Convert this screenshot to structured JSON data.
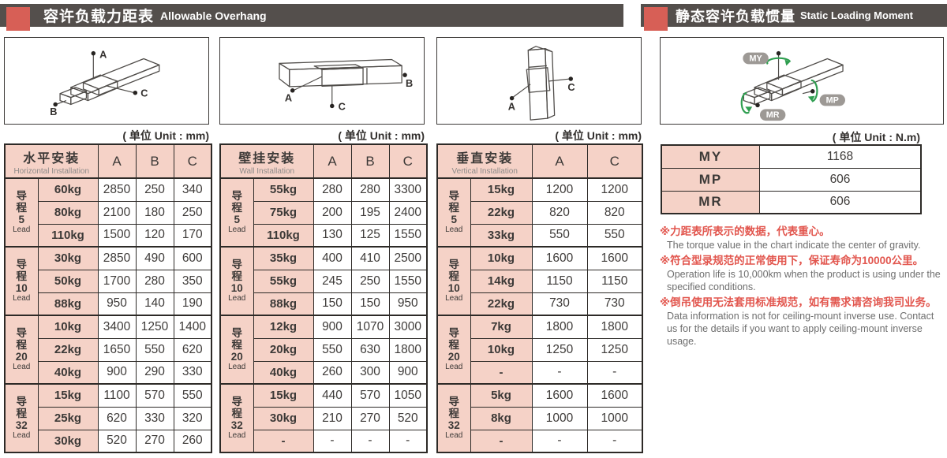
{
  "header_bars": {
    "left": {
      "title_zh": "容许负载力距表",
      "title_en": "Allowable Overhang"
    },
    "right": {
      "title_zh": "静态容许负载惯量",
      "title_en": "Static Loading Moment"
    }
  },
  "units": {
    "mm": "( 单位 Unit : mm)",
    "nm": "( 单位 Unit : N.m)"
  },
  "diagram_labels": {
    "a": "A",
    "b": "B",
    "c": "C",
    "my": "MY",
    "mp": "MP",
    "mr": "MR"
  },
  "tables": [
    {
      "title_zh": "水平安装",
      "title_en": "Horizontal Installation",
      "columns": [
        "A",
        "B",
        "C"
      ],
      "groups": [
        {
          "lead_label_zh": "导程",
          "lead_number": "5",
          "lead_label_en": "Lead",
          "rows": [
            {
              "load": "60kg",
              "values": [
                "2850",
                "250",
                "340"
              ]
            },
            {
              "load": "80kg",
              "values": [
                "2100",
                "180",
                "250"
              ]
            },
            {
              "load": "110kg",
              "values": [
                "1500",
                "120",
                "170"
              ]
            }
          ]
        },
        {
          "lead_label_zh": "导程",
          "lead_number": "10",
          "lead_label_en": "Lead",
          "rows": [
            {
              "load": "30kg",
              "values": [
                "2850",
                "490",
                "600"
              ]
            },
            {
              "load": "50kg",
              "values": [
                "1700",
                "280",
                "350"
              ]
            },
            {
              "load": "88kg",
              "values": [
                "950",
                "140",
                "190"
              ]
            }
          ]
        },
        {
          "lead_label_zh": "导程",
          "lead_number": "20",
          "lead_label_en": "Lead",
          "rows": [
            {
              "load": "10kg",
              "values": [
                "3400",
                "1250",
                "1400"
              ]
            },
            {
              "load": "22kg",
              "values": [
                "1650",
                "550",
                "620"
              ]
            },
            {
              "load": "40kg",
              "values": [
                "900",
                "290",
                "330"
              ]
            }
          ]
        },
        {
          "lead_label_zh": "导程",
          "lead_number": "32",
          "lead_label_en": "Lead",
          "rows": [
            {
              "load": "15kg",
              "values": [
                "1100",
                "570",
                "550"
              ]
            },
            {
              "load": "25kg",
              "values": [
                "620",
                "330",
                "320"
              ]
            },
            {
              "load": "30kg",
              "values": [
                "520",
                "270",
                "260"
              ]
            }
          ]
        }
      ]
    },
    {
      "title_zh": "壁挂安装",
      "title_en": "Wall Installation",
      "columns": [
        "A",
        "B",
        "C"
      ],
      "groups": [
        {
          "lead_label_zh": "导程",
          "lead_number": "5",
          "lead_label_en": "Lead",
          "rows": [
            {
              "load": "55kg",
              "values": [
                "280",
                "280",
                "3300"
              ]
            },
            {
              "load": "75kg",
              "values": [
                "200",
                "195",
                "2400"
              ]
            },
            {
              "load": "110kg",
              "values": [
                "130",
                "125",
                "1550"
              ]
            }
          ]
        },
        {
          "lead_label_zh": "导程",
          "lead_number": "10",
          "lead_label_en": "Lead",
          "rows": [
            {
              "load": "35kg",
              "values": [
                "400",
                "410",
                "2500"
              ]
            },
            {
              "load": "55kg",
              "values": [
                "245",
                "250",
                "1550"
              ]
            },
            {
              "load": "88kg",
              "values": [
                "150",
                "150",
                "950"
              ]
            }
          ]
        },
        {
          "lead_label_zh": "导程",
          "lead_number": "20",
          "lead_label_en": "Lead",
          "rows": [
            {
              "load": "12kg",
              "values": [
                "900",
                "1070",
                "3000"
              ]
            },
            {
              "load": "20kg",
              "values": [
                "550",
                "630",
                "1800"
              ]
            },
            {
              "load": "40kg",
              "values": [
                "260",
                "300",
                "900"
              ]
            }
          ]
        },
        {
          "lead_label_zh": "导程",
          "lead_number": "32",
          "lead_label_en": "Lead",
          "rows": [
            {
              "load": "15kg",
              "values": [
                "440",
                "570",
                "1050"
              ]
            },
            {
              "load": "30kg",
              "values": [
                "210",
                "270",
                "520"
              ]
            },
            {
              "load": "-",
              "values": [
                "-",
                "-",
                "-"
              ]
            }
          ]
        }
      ]
    },
    {
      "title_zh": "垂直安装",
      "title_en": "Vertical Installation",
      "columns": [
        "A",
        "C"
      ],
      "groups": [
        {
          "lead_label_zh": "导程",
          "lead_number": "5",
          "lead_label_en": "Lead",
          "rows": [
            {
              "load": "15kg",
              "values": [
                "1200",
                "1200"
              ]
            },
            {
              "load": "22kg",
              "values": [
                "820",
                "820"
              ]
            },
            {
              "load": "33kg",
              "values": [
                "550",
                "550"
              ]
            }
          ]
        },
        {
          "lead_label_zh": "导程",
          "lead_number": "10",
          "lead_label_en": "Lead",
          "rows": [
            {
              "load": "10kg",
              "values": [
                "1600",
                "1600"
              ]
            },
            {
              "load": "14kg",
              "values": [
                "1150",
                "1150"
              ]
            },
            {
              "load": "22kg",
              "values": [
                "730",
                "730"
              ]
            }
          ]
        },
        {
          "lead_label_zh": "导程",
          "lead_number": "20",
          "lead_label_en": "Lead",
          "rows": [
            {
              "load": "7kg",
              "values": [
                "1800",
                "1800"
              ]
            },
            {
              "load": "10kg",
              "values": [
                "1250",
                "1250"
              ]
            },
            {
              "load": "-",
              "values": [
                "-",
                "-"
              ]
            }
          ]
        },
        {
          "lead_label_zh": "导程",
          "lead_number": "32",
          "lead_label_en": "Lead",
          "rows": [
            {
              "load": "5kg",
              "values": [
                "1600",
                "1600"
              ]
            },
            {
              "load": "8kg",
              "values": [
                "1000",
                "1000"
              ]
            },
            {
              "load": "-",
              "values": [
                "-",
                "-"
              ]
            }
          ]
        }
      ]
    }
  ],
  "moment_table": {
    "rows": [
      {
        "label": "MY",
        "value": "1168"
      },
      {
        "label": "MP",
        "value": "606"
      },
      {
        "label": "MR",
        "value": "606"
      }
    ]
  },
  "notes": [
    {
      "zh": "※力距表所表示的数据，代表重心。",
      "en": "The torque value in the chart indicate the center of gravity."
    },
    {
      "zh": "※符合型录规范的正常使用下，保证寿命为10000公里。",
      "en": "Operation life is 10,000km when the product is using under the specified conditions."
    },
    {
      "zh": "※倒吊使用无法套用标准规范，如有需求请咨询我司业务。",
      "en": "Data information is not for ceiling-mount inverse use. Contact us for the details if you want to apply ceiling-mount inverse usage."
    }
  ],
  "colors": {
    "accent_red": "#d75f56",
    "bar_dark": "#544f4c",
    "cell_pink": "#f5d2c7",
    "note_red": "#e2564e",
    "diagram_green": "#2f9e50",
    "badge_gray": "#9d9995"
  }
}
